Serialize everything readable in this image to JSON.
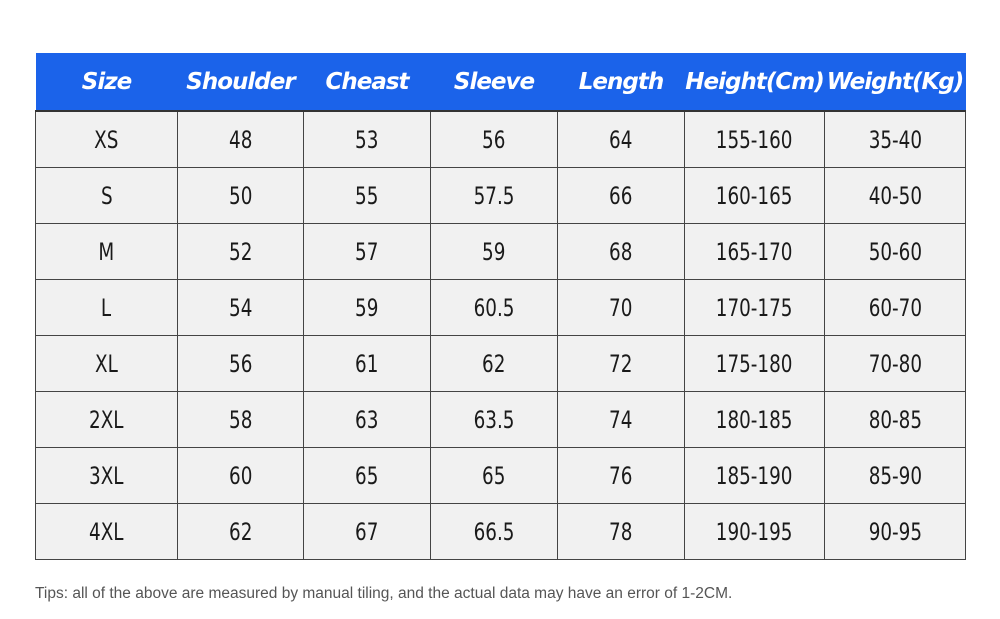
{
  "header_color": "#1b63ea",
  "columns": [
    "Size",
    "Shoulder",
    "Cheast",
    "Sleeve",
    "Length",
    "Height(Cm)",
    "Weight(Kg)"
  ],
  "rows": [
    [
      "XS",
      "48",
      "53",
      "56",
      "64",
      "155-160",
      "35-40"
    ],
    [
      "S",
      "50",
      "55",
      "57.5",
      "66",
      "160-165",
      "40-50"
    ],
    [
      "M",
      "52",
      "57",
      "59",
      "68",
      "165-170",
      "50-60"
    ],
    [
      "L",
      "54",
      "59",
      "60.5",
      "70",
      "170-175",
      "60-70"
    ],
    [
      "XL",
      "56",
      "61",
      "62",
      "72",
      "175-180",
      "70-80"
    ],
    [
      "2XL",
      "58",
      "63",
      "63.5",
      "74",
      "180-185",
      "80-85"
    ],
    [
      "3XL",
      "60",
      "65",
      "65",
      "76",
      "185-190",
      "85-90"
    ],
    [
      "4XL",
      "62",
      "67",
      "66.5",
      "78",
      "190-195",
      "90-95"
    ]
  ],
  "tips": "Tips: all of the above are measured by manual tiling, and the actual data may have an error of 1-2CM."
}
